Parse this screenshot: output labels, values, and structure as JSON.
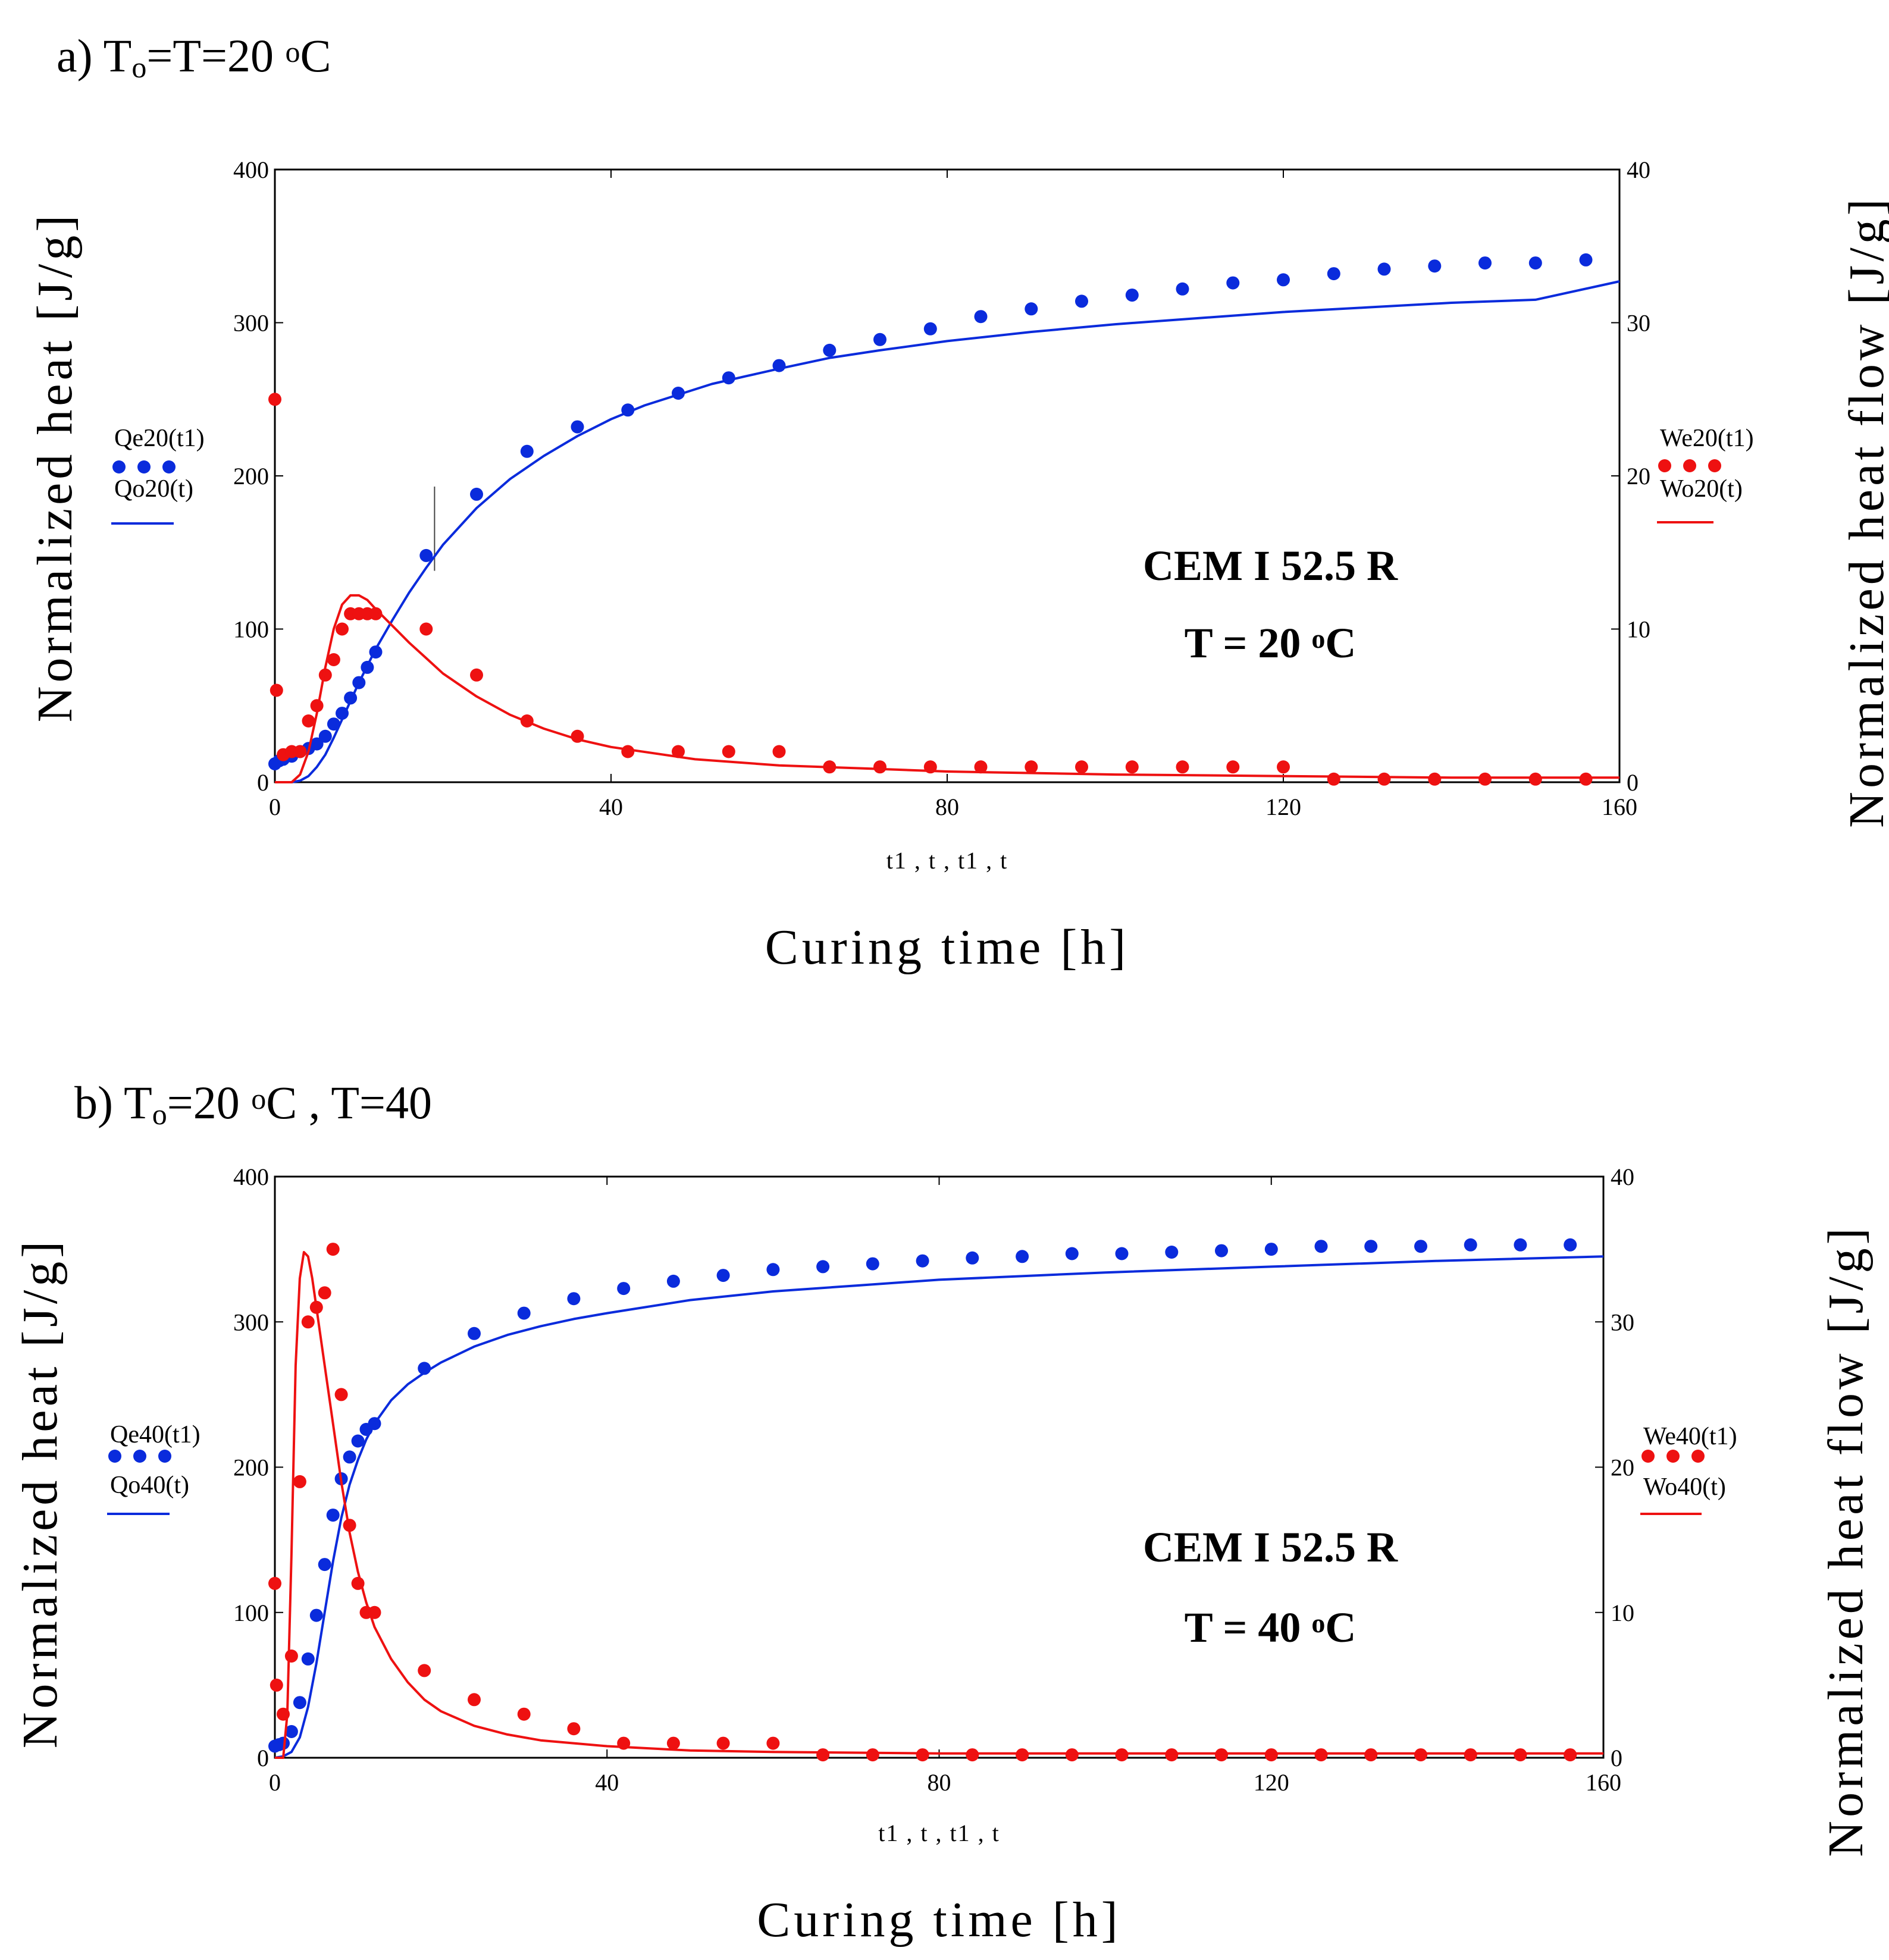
{
  "colors": {
    "blue": "#0a2bdc",
    "red": "#ee1111",
    "axis": "#000000"
  },
  "chart_data": [
    {
      "type": "scatter+line",
      "panel": "a",
      "title_parts": [
        "a) T",
        "o",
        "=T=20 ",
        "o",
        "C"
      ],
      "xlabel": "Curing time [h]",
      "x_var_label": "t1 , t , t1 , t",
      "ylabel_left": "Normalized heat [J/g]",
      "ylabel_right": "Normalized heat flow [J/g]",
      "xlim": [
        0,
        160
      ],
      "ylim_left": [
        0,
        400
      ],
      "ylim_right": [
        0,
        40
      ],
      "x_ticks": [
        "0",
        "40",
        "80",
        "120",
        "160"
      ],
      "y_left_ticks": [
        "0",
        "100",
        "200",
        "300",
        "400"
      ],
      "y_right_ticks": [
        "0",
        "10",
        "20",
        "30",
        "40"
      ],
      "legend_left": [
        "Qe20(t1)",
        "Qo20(t)"
      ],
      "legend_right": [
        "We20(t1)",
        "Wo20(t)"
      ],
      "annotation": [
        "CEM I 52.5 R",
        "T = 20 ",
        "o",
        "C"
      ],
      "cursor_x": 19,
      "series": [
        {
          "name": "Qe20(t1)",
          "axis": "left",
          "style": "dots",
          "x": [
            0,
            0.5,
            1,
            2,
            3,
            4,
            5,
            6,
            7,
            8,
            9,
            10,
            11,
            12,
            18,
            24,
            30,
            36,
            42,
            48,
            54,
            60,
            66,
            72,
            78,
            84,
            90,
            96,
            102,
            108,
            114,
            120,
            126,
            132,
            138,
            144,
            150,
            156
          ],
          "y": [
            12,
            14,
            15,
            17,
            20,
            22,
            25,
            30,
            38,
            45,
            55,
            65,
            75,
            85,
            148,
            188,
            216,
            232,
            243,
            254,
            264,
            272,
            282,
            289,
            296,
            304,
            309,
            314,
            318,
            322,
            326,
            328,
            332,
            335,
            337,
            339,
            339,
            341
          ]
        },
        {
          "name": "Qo20(t)",
          "axis": "left",
          "style": "line",
          "x": [
            0,
            2,
            3,
            4,
            5,
            6,
            7,
            8,
            9,
            10,
            12,
            14,
            16,
            18,
            20,
            24,
            28,
            32,
            36,
            40,
            44,
            48,
            52,
            56,
            60,
            66,
            72,
            80,
            90,
            100,
            110,
            120,
            130,
            140,
            150,
            160
          ],
          "y": [
            0,
            0,
            1,
            4,
            10,
            18,
            29,
            41,
            53,
            65,
            87,
            106,
            124,
            140,
            155,
            179,
            198,
            213,
            226,
            237,
            246,
            253,
            260,
            265,
            270,
            277,
            282,
            288,
            294,
            299,
            303,
            307,
            310,
            313,
            315,
            327
          ]
        },
        {
          "name": "We20(t1)",
          "axis": "right",
          "style": "dots",
          "x": [
            0,
            0.2,
            1,
            2,
            3,
            4,
            5,
            6,
            7,
            8,
            9,
            10,
            11,
            12,
            18,
            24,
            30,
            36,
            42,
            48,
            54,
            60,
            66,
            72,
            78,
            84,
            90,
            96,
            102,
            108,
            114,
            120,
            126,
            132,
            138,
            144,
            150,
            156
          ],
          "y": [
            25,
            6,
            1.8,
            2,
            2,
            4,
            5,
            7,
            8,
            10,
            11,
            11,
            11,
            11,
            10,
            7,
            4,
            3,
            2,
            2,
            2,
            2,
            1,
            1,
            1,
            1,
            1,
            1,
            1,
            1,
            1,
            1,
            0.2,
            0.2,
            0.2,
            0.2,
            0.2,
            0.2
          ]
        },
        {
          "name": "Wo20(t)",
          "axis": "right",
          "style": "line",
          "x": [
            0,
            2,
            3,
            4,
            5,
            6,
            7,
            8,
            9,
            10,
            11,
            12,
            14,
            16,
            18,
            20,
            24,
            28,
            32,
            36,
            40,
            50,
            60,
            70,
            80,
            100,
            120,
            140,
            160
          ],
          "y": [
            0,
            0,
            0.5,
            2,
            4.5,
            7.5,
            10,
            11.6,
            12.2,
            12.2,
            11.9,
            11.3,
            10.2,
            9.1,
            8.1,
            7.1,
            5.6,
            4.4,
            3.5,
            2.8,
            2.3,
            1.5,
            1.1,
            0.9,
            0.7,
            0.5,
            0.4,
            0.3,
            0.3
          ]
        }
      ]
    },
    {
      "type": "scatter+line",
      "panel": "b",
      "title_parts": [
        "b) T",
        "o",
        "=20 ",
        "o",
        "C ,    T=40"
      ],
      "xlabel": "Curing time [h]",
      "x_var_label": "t1 , t , t1 , t",
      "ylabel_left": "Normalized heat [J/g]",
      "ylabel_right": "Normalized heat flow [J/g]",
      "xlim": [
        0,
        160
      ],
      "ylim_left": [
        0,
        400
      ],
      "ylim_right": [
        0,
        40
      ],
      "x_ticks": [
        "0",
        "40",
        "80",
        "120",
        "160"
      ],
      "y_left_ticks": [
        "0",
        "100",
        "200",
        "300",
        "400"
      ],
      "y_right_ticks": [
        "0",
        "10",
        "20",
        "30",
        "40"
      ],
      "legend_left": [
        "Qe40(t1)",
        "Qo40(t)"
      ],
      "legend_right": [
        "We40(t1)",
        "Wo40(t)"
      ],
      "annotation": [
        "CEM I 52.5 R",
        "T = 40 ",
        "o",
        "C"
      ],
      "cursor_x": null,
      "series": [
        {
          "name": "Qe40(t1)",
          "axis": "left",
          "style": "dots",
          "x": [
            0,
            0.5,
            1,
            2,
            3,
            4,
            5,
            6,
            7,
            8,
            9,
            10,
            11,
            12,
            18,
            24,
            30,
            36,
            42,
            48,
            54,
            60,
            66,
            72,
            78,
            84,
            90,
            96,
            102,
            108,
            114,
            120,
            126,
            132,
            138,
            144,
            150,
            156
          ],
          "y": [
            8,
            9,
            10,
            18,
            38,
            68,
            98,
            133,
            167,
            192,
            207,
            218,
            226,
            230,
            268,
            292,
            306,
            316,
            323,
            328,
            332,
            336,
            338,
            340,
            342,
            344,
            345,
            347,
            347,
            348,
            349,
            350,
            352,
            352,
            352,
            353,
            353,
            353
          ]
        },
        {
          "name": "Qo40(t)",
          "axis": "left",
          "style": "line",
          "x": [
            0,
            1,
            2,
            3,
            4,
            5,
            6,
            7,
            8,
            9,
            10,
            11,
            12,
            14,
            16,
            18,
            20,
            24,
            28,
            32,
            36,
            40,
            50,
            60,
            70,
            80,
            100,
            120,
            140,
            160
          ],
          "y": [
            0,
            1,
            4,
            14,
            35,
            65,
            100,
            135,
            165,
            188,
            205,
            219,
            230,
            246,
            257,
            265,
            272,
            283,
            291,
            297,
            302,
            306,
            315,
            321,
            325,
            329,
            334,
            338,
            342,
            345
          ]
        },
        {
          "name": "We40(t1)",
          "axis": "right",
          "style": "dots",
          "x": [
            0,
            0.2,
            1,
            2,
            3,
            4,
            5,
            6,
            7,
            8,
            9,
            10,
            11,
            12,
            18,
            24,
            30,
            36,
            42,
            48,
            54,
            60,
            66,
            72,
            78,
            84,
            90,
            96,
            102,
            108,
            114,
            120,
            126,
            132,
            138,
            144,
            150,
            156
          ],
          "y": [
            12,
            5,
            3,
            7,
            19,
            30,
            31,
            32,
            35,
            25,
            16,
            12,
            10,
            10,
            6,
            4,
            3,
            2,
            1,
            1,
            1,
            1,
            0.2,
            0.2,
            0.2,
            0.2,
            0.2,
            0.2,
            0.2,
            0.2,
            0.2,
            0.2,
            0.2,
            0.2,
            0.2,
            0.2,
            0.2,
            0.2
          ]
        },
        {
          "name": "Wo40(t)",
          "axis": "right",
          "style": "line",
          "x": [
            0,
            1,
            1.5,
            2,
            2.5,
            3,
            3.5,
            4,
            4.5,
            5,
            6,
            7,
            8,
            9,
            10,
            11,
            12,
            14,
            16,
            18,
            20,
            24,
            28,
            32,
            36,
            40,
            50,
            60,
            80,
            100,
            120,
            140,
            160
          ],
          "y": [
            0,
            0,
            3,
            14,
            27,
            33,
            34.8,
            34.5,
            33,
            31,
            27,
            23,
            19,
            15.5,
            12.8,
            10.7,
            9,
            6.8,
            5.2,
            4,
            3.2,
            2.2,
            1.6,
            1.2,
            1,
            0.8,
            0.5,
            0.4,
            0.3,
            0.3,
            0.3,
            0.3,
            0.3
          ]
        }
      ]
    }
  ]
}
